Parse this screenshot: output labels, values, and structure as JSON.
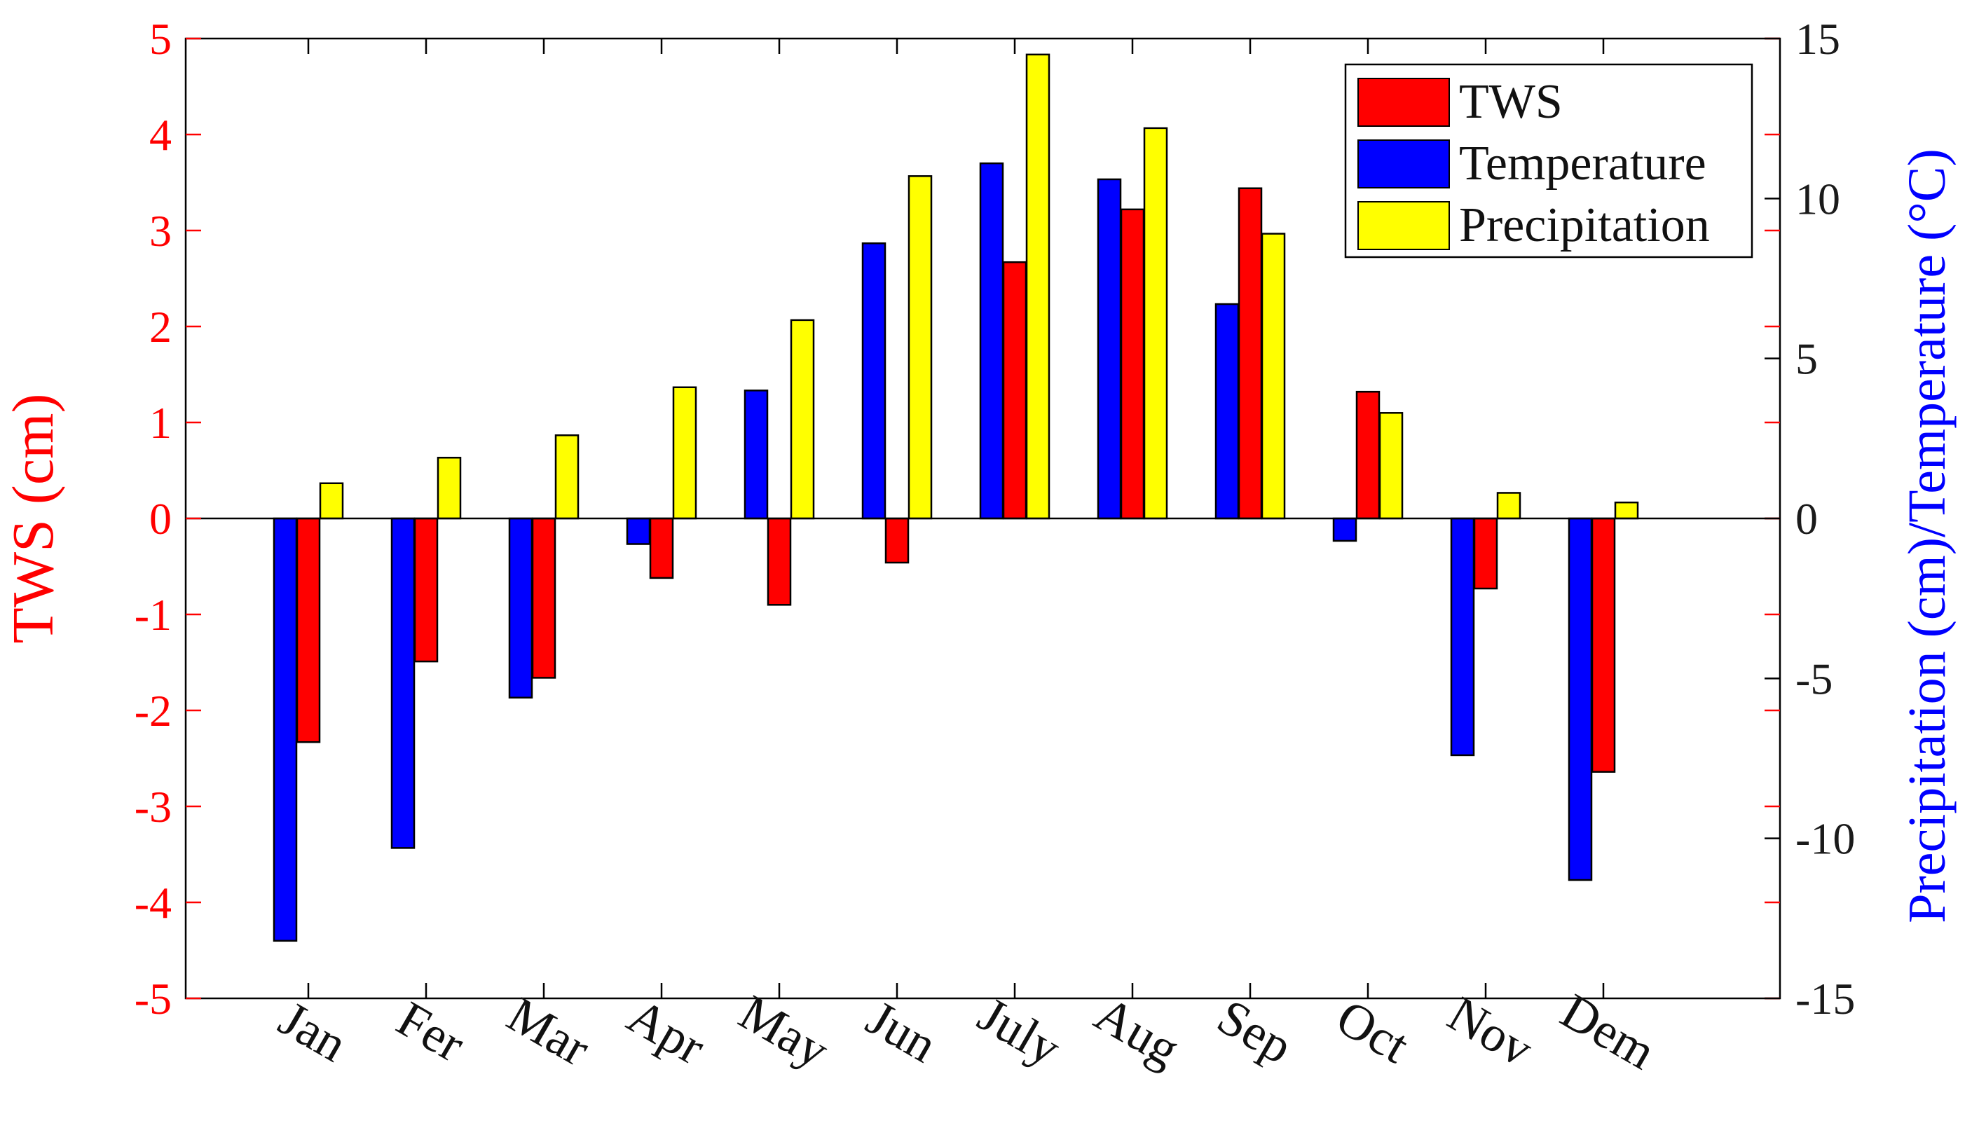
{
  "chart_data": {
    "type": "bar",
    "title": "",
    "xlabel": "",
    "categories": [
      "Jan",
      "Fer",
      "Mar",
      "Apr",
      "May",
      "Jun",
      "July",
      "Aug",
      "Sep",
      "Oct",
      "Nov",
      "Dem"
    ],
    "left_axis": {
      "label": "TWS (cm)",
      "ylim": [
        -5,
        5
      ],
      "ticks": [
        "5",
        "4",
        "3",
        "2",
        "1",
        "0",
        "-1",
        "-2",
        "-3",
        "-4",
        "-5"
      ],
      "color": "#ff0000"
    },
    "right_axis": {
      "label": "Precipitation (cm)/Temperature (°C)",
      "ylim": [
        -15,
        15
      ],
      "ticks": [
        "15",
        "10",
        "5",
        "0",
        "-5",
        "-10",
        "-15"
      ],
      "color": "#0000ff"
    },
    "series": [
      {
        "name": "Temperature",
        "axis": "right",
        "color": "#0000ff",
        "values": [
          -13.2,
          -10.3,
          -5.6,
          -0.8,
          4.0,
          8.6,
          11.1,
          10.6,
          6.7,
          -0.7,
          -7.4,
          -11.3
        ]
      },
      {
        "name": "TWS",
        "axis": "left",
        "color": "#ff0000",
        "values": [
          -2.33,
          -1.49,
          -1.66,
          -0.62,
          -0.9,
          -0.46,
          2.67,
          3.22,
          3.44,
          1.32,
          -0.73,
          -2.64
        ]
      },
      {
        "name": "Precipitation",
        "axis": "right",
        "color": "#ffff00",
        "values": [
          1.1,
          1.9,
          2.6,
          4.1,
          6.2,
          10.7,
          14.5,
          12.2,
          8.9,
          3.3,
          0.8,
          0.5
        ]
      }
    ],
    "legend": {
      "position": "top-right",
      "entries": [
        {
          "label": "TWS",
          "color": "#ff0000"
        },
        {
          "label": "Temperature",
          "color": "#0000ff"
        },
        {
          "label": "Precipitation",
          "color": "#ffff00"
        }
      ]
    },
    "grid": false
  }
}
